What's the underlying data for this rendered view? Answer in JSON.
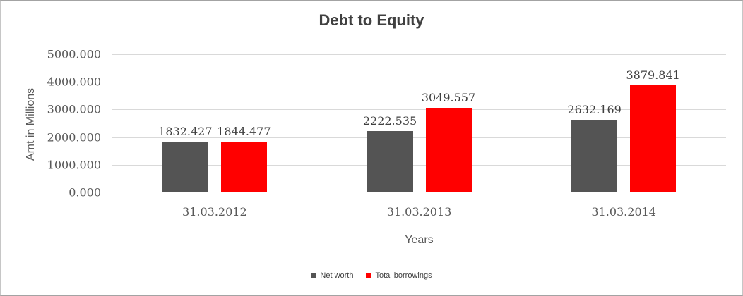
{
  "chart_data": {
    "type": "bar",
    "title": "Debt to Equity",
    "xlabel": "Years",
    "ylabel": "Amt in Millions",
    "categories": [
      "31.03.2012",
      "31.03.2013",
      "31.03.2014"
    ],
    "series": [
      {
        "name": "Net worth",
        "color": "#545454",
        "values": [
          1832.427,
          2222.535,
          2632.169
        ]
      },
      {
        "name": "Total borrowings",
        "color": "#FF0000",
        "values": [
          1844.477,
          3049.557,
          3879.841
        ]
      }
    ],
    "value_label_decimals": 3,
    "ylim": [
      0,
      5000
    ],
    "yticks": [
      0,
      1000,
      2000,
      3000,
      4000,
      5000
    ],
    "ytick_decimals": 3,
    "grid": true,
    "legend_position": "bottom",
    "colors": {
      "gridline": "#D9D9D9",
      "title_text": "#404040",
      "axis_text": "#595959",
      "data_label_text": "#404040",
      "frame_border": "#A3A3A3"
    }
  }
}
